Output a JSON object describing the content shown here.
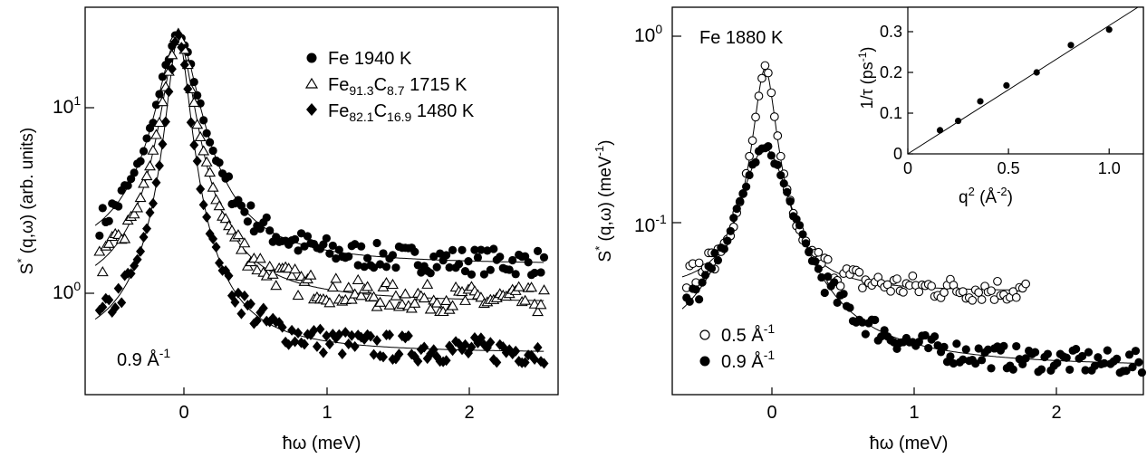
{
  "chart_data": [
    {
      "type": "scatter",
      "yscale": "log",
      "xlabel": "ħω (meV)",
      "ylabel": "S*(q,ω) (arb. units)",
      "xlim": [
        -0.65,
        2.65
      ],
      "ylim": [
        0.38,
        28
      ],
      "xticks": [
        0,
        1,
        2
      ],
      "xtick_labels": [
        "0",
        "1",
        "2"
      ],
      "ytick_labels": [
        "10^0",
        "10^1"
      ],
      "annotation": "0.9 Å^-1",
      "legend_position": "top-right",
      "series": [
        {
          "name": "Fe 1940 K",
          "marker": "filled-circle",
          "fit": {
            "amp": 18.5,
            "gamma": 0.13,
            "bg": 1.6
          }
        },
        {
          "name": "Fe91.3C8.7 1715 K",
          "marker": "open-triangle",
          "fit": {
            "amp": 18.8,
            "gamma": 0.1,
            "bg": 1.05
          }
        },
        {
          "name": "Fe82.1C16.9 1480 K",
          "marker": "filled-diamond",
          "fit": {
            "amp": 19.4,
            "gamma": 0.07,
            "bg": 0.6
          }
        }
      ]
    },
    {
      "type": "scatter",
      "yscale": "log",
      "xlabel": "ħω (meV)",
      "ylabel": "S*(q,ω) (meV^-1)",
      "xlim": [
        -0.65,
        2.65
      ],
      "ylim": [
        0.013,
        1.4
      ],
      "xticks": [
        0,
        1,
        2
      ],
      "xtick_labels": [
        "0",
        "1",
        "2"
      ],
      "ytick_labels": [
        "10^0",
        "10^-1"
      ],
      "annotation": "Fe 1880 K",
      "legend_position": "bottom-left",
      "series": [
        {
          "name": "0.5 Å^-1",
          "marker": "open-circle",
          "fit": {
            "amp": 0.62,
            "gamma": 0.07,
            "bg": 0.045
          }
        },
        {
          "name": "0.9 Å^-1",
          "marker": "filled-circle",
          "fit": {
            "amp": 0.235,
            "gamma": 0.17,
            "bg": 0.018
          }
        }
      ],
      "inset": {
        "type": "scatter",
        "xlabel": "q² (Å^-2)",
        "ylabel": "1/τ (ps^-1)",
        "xlim": [
          0,
          1.17
        ],
        "ylim": [
          0,
          0.36
        ],
        "xticks": [
          0,
          0.5,
          1.0
        ],
        "xtick_labels": [
          "0",
          "0.5",
          "1.0"
        ],
        "yticks": [
          0,
          0.1,
          0.2,
          0.3
        ],
        "ytick_labels": [
          "0",
          "0.1",
          "0.2",
          "0.3"
        ],
        "x": [
          0.16,
          0.25,
          0.36,
          0.49,
          0.64,
          0.81,
          1.0
        ],
        "y": [
          0.058,
          0.081,
          0.129,
          0.168,
          0.2,
          0.267,
          0.305
        ],
        "fit_line": {
          "slope": 0.315,
          "intercept": 0
        }
      }
    }
  ]
}
